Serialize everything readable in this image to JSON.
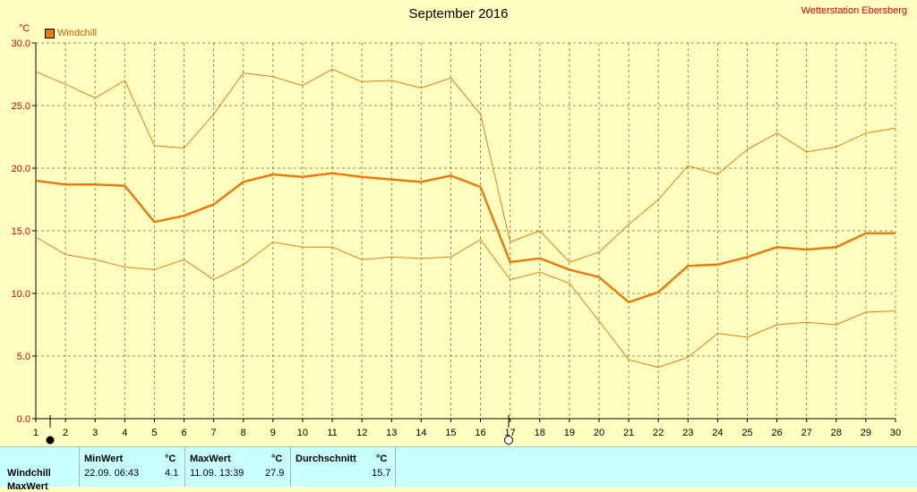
{
  "header": {
    "title": "September 2016",
    "station": "Wetterstation Ebersberg",
    "unit": "°C",
    "legend_label": "Windchill",
    "series_color": "#e87a10"
  },
  "chart_data": {
    "type": "line",
    "x": [
      1,
      2,
      3,
      4,
      5,
      6,
      7,
      8,
      9,
      10,
      11,
      12,
      13,
      14,
      15,
      16,
      17,
      18,
      19,
      20,
      21,
      22,
      23,
      24,
      25,
      26,
      27,
      28,
      29,
      30
    ],
    "ylim": [
      0,
      30
    ],
    "xlim": [
      1,
      30
    ],
    "yticks": [
      "0.0",
      "5.0",
      "10.0",
      "15.0",
      "20.0",
      "25.0",
      "30.0"
    ],
    "grid": true,
    "legend_position": "top-left",
    "series": [
      {
        "name": "Windchill",
        "role": "max",
        "values": [
          27.7,
          26.7,
          25.6,
          27.0,
          21.8,
          21.6,
          24.3,
          27.6,
          27.3,
          26.6,
          27.9,
          26.9,
          27.0,
          26.4,
          27.2,
          24.3,
          14.1,
          15.0,
          12.5,
          13.3,
          15.5,
          17.5,
          20.2,
          19.5,
          21.5,
          22.8,
          21.3,
          21.7,
          22.8,
          23.2
        ]
      },
      {
        "name": "Windchill",
        "role": "avg",
        "values": [
          19.0,
          18.7,
          18.7,
          18.6,
          15.7,
          16.2,
          17.1,
          18.9,
          19.5,
          19.3,
          19.6,
          19.3,
          19.1,
          18.9,
          19.4,
          18.5,
          12.5,
          12.8,
          11.9,
          11.3,
          9.3,
          10.1,
          12.2,
          12.3,
          12.9,
          13.7,
          13.5,
          13.7,
          14.8,
          14.8
        ]
      },
      {
        "name": "Windchill",
        "role": "min",
        "values": [
          14.5,
          13.1,
          12.7,
          12.1,
          11.9,
          12.7,
          11.1,
          12.3,
          14.1,
          13.7,
          13.7,
          12.7,
          12.9,
          12.8,
          12.9,
          14.3,
          11.1,
          11.7,
          10.8,
          7.8,
          4.7,
          4.1,
          4.9,
          6.8,
          6.5,
          7.5,
          7.7,
          7.5,
          8.5,
          8.6
        ]
      }
    ]
  },
  "stats": {
    "row_label": "Windchill",
    "next_row_label": "MaxWert",
    "min_header": "MinWert",
    "max_header": "MaxWert",
    "avg_header": "Durchschnitt",
    "unit": "°C",
    "min_time": "22.09.  06:43",
    "min_value": "4.1",
    "max_time": "11.09.  13:39",
    "max_value": "27.9",
    "avg_value": "15.7"
  }
}
